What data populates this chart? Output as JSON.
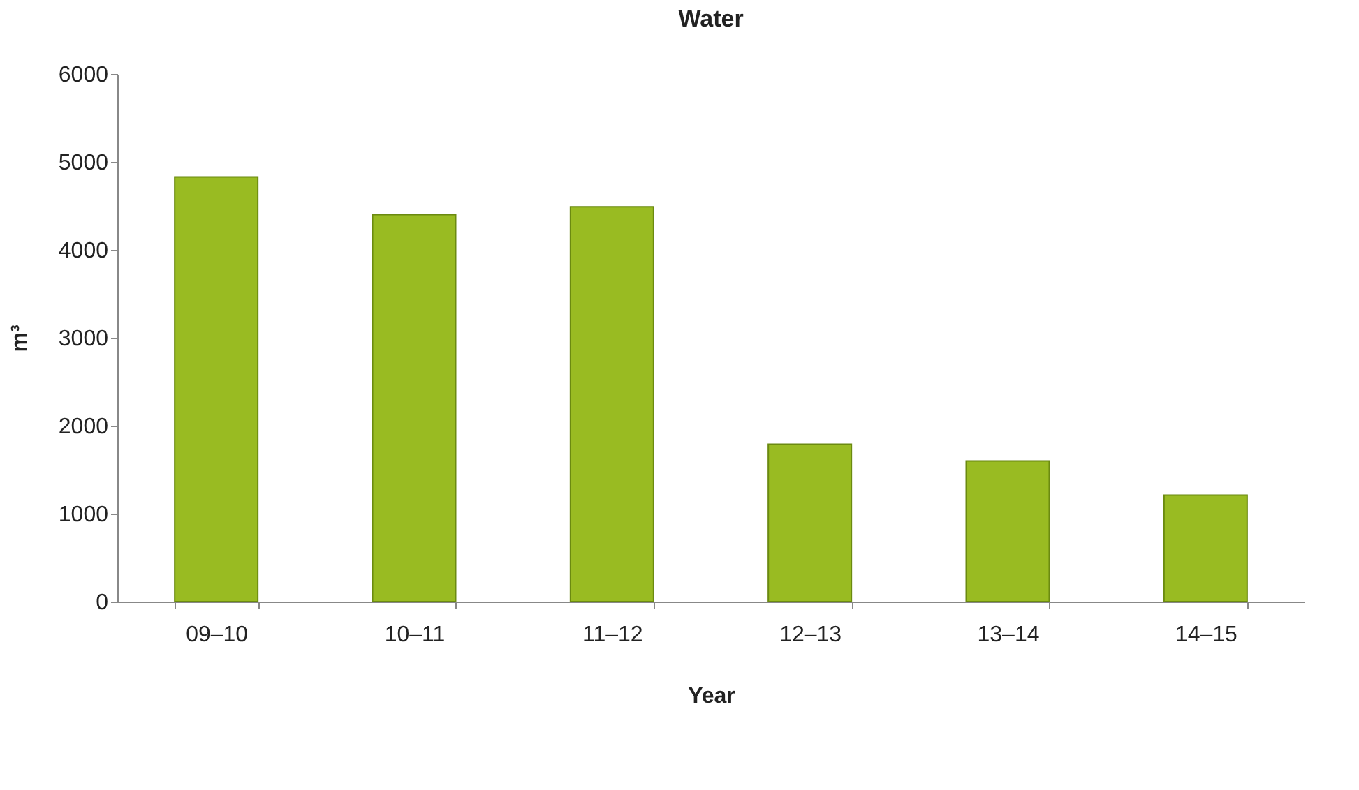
{
  "chart_data": {
    "type": "bar",
    "title": "Water",
    "xlabel": "Year",
    "ylabel": "m³",
    "categories": [
      "09–10",
      "10–11",
      "11–12",
      "12–13",
      "13–14",
      "14–15"
    ],
    "values": [
      4830,
      4400,
      4490,
      1790,
      1600,
      1210
    ],
    "color": "#99bb22",
    "ylim": [
      0,
      6000
    ],
    "yticks": [
      0,
      1000,
      2000,
      3000,
      4000,
      5000,
      6000
    ],
    "grid": false
  }
}
